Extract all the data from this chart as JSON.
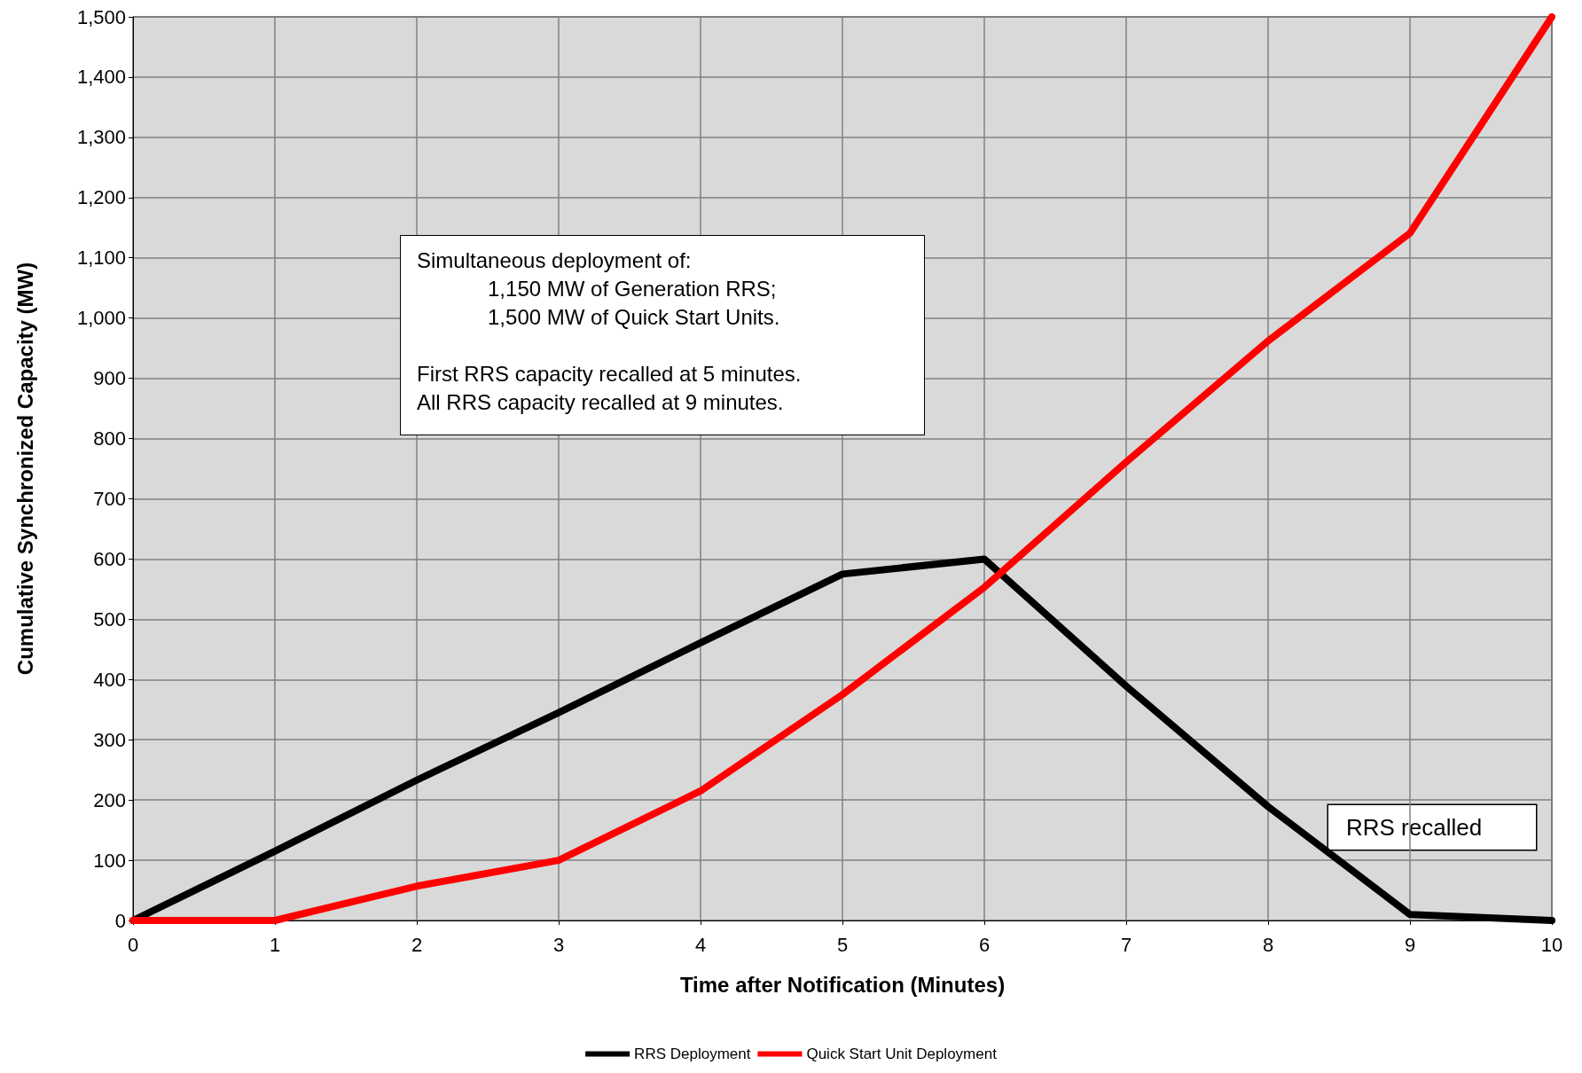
{
  "chart_data": {
    "type": "line",
    "xlabel": "Time after Notification (Minutes)",
    "ylabel": "Cumulative Synchronized Capacity (MW)",
    "x": [
      0,
      1,
      2,
      3,
      4,
      5,
      6,
      7,
      8,
      9,
      10
    ],
    "series": [
      {
        "name": "RRS Deployment",
        "color": "#000000",
        "values": [
          0,
          115,
          233,
          345,
          461,
          575,
          600,
          389,
          189,
          10,
          0
        ]
      },
      {
        "name": "Quick Start Unit Deployment",
        "color": "#ff0000",
        "values": [
          0,
          0,
          57,
          100,
          215,
          375,
          553,
          761,
          962,
          1141,
          1500
        ]
      }
    ],
    "xlim": [
      0,
      10
    ],
    "xticks": [
      0,
      1,
      2,
      3,
      4,
      5,
      6,
      7,
      8,
      9,
      10
    ],
    "ylim": [
      0,
      1500
    ],
    "yticks": [
      0,
      100,
      200,
      300,
      400,
      500,
      600,
      700,
      800,
      900,
      {
        "value": 1000,
        "label": "1,000"
      },
      {
        "value": 1100,
        "label": "1,100"
      },
      {
        "value": 1200,
        "label": "1,200"
      },
      {
        "value": 1300,
        "label": "1,300"
      },
      {
        "value": 1400,
        "label": "1,400"
      },
      {
        "value": 1500,
        "label": "1,500"
      }
    ],
    "grid": true,
    "legend": "bottom",
    "marker": "none",
    "line_style": "solid",
    "annotations": [
      "Simultaneous deployment of:\n            1,150 MW of Generation RRS;\n            1,500 MW of Quick Start Units.\n\nFirst RRS capacity recalled at 5 minutes.\nAll RRS capacity recalled at 9 minutes.",
      "RRS recalled"
    ]
  }
}
